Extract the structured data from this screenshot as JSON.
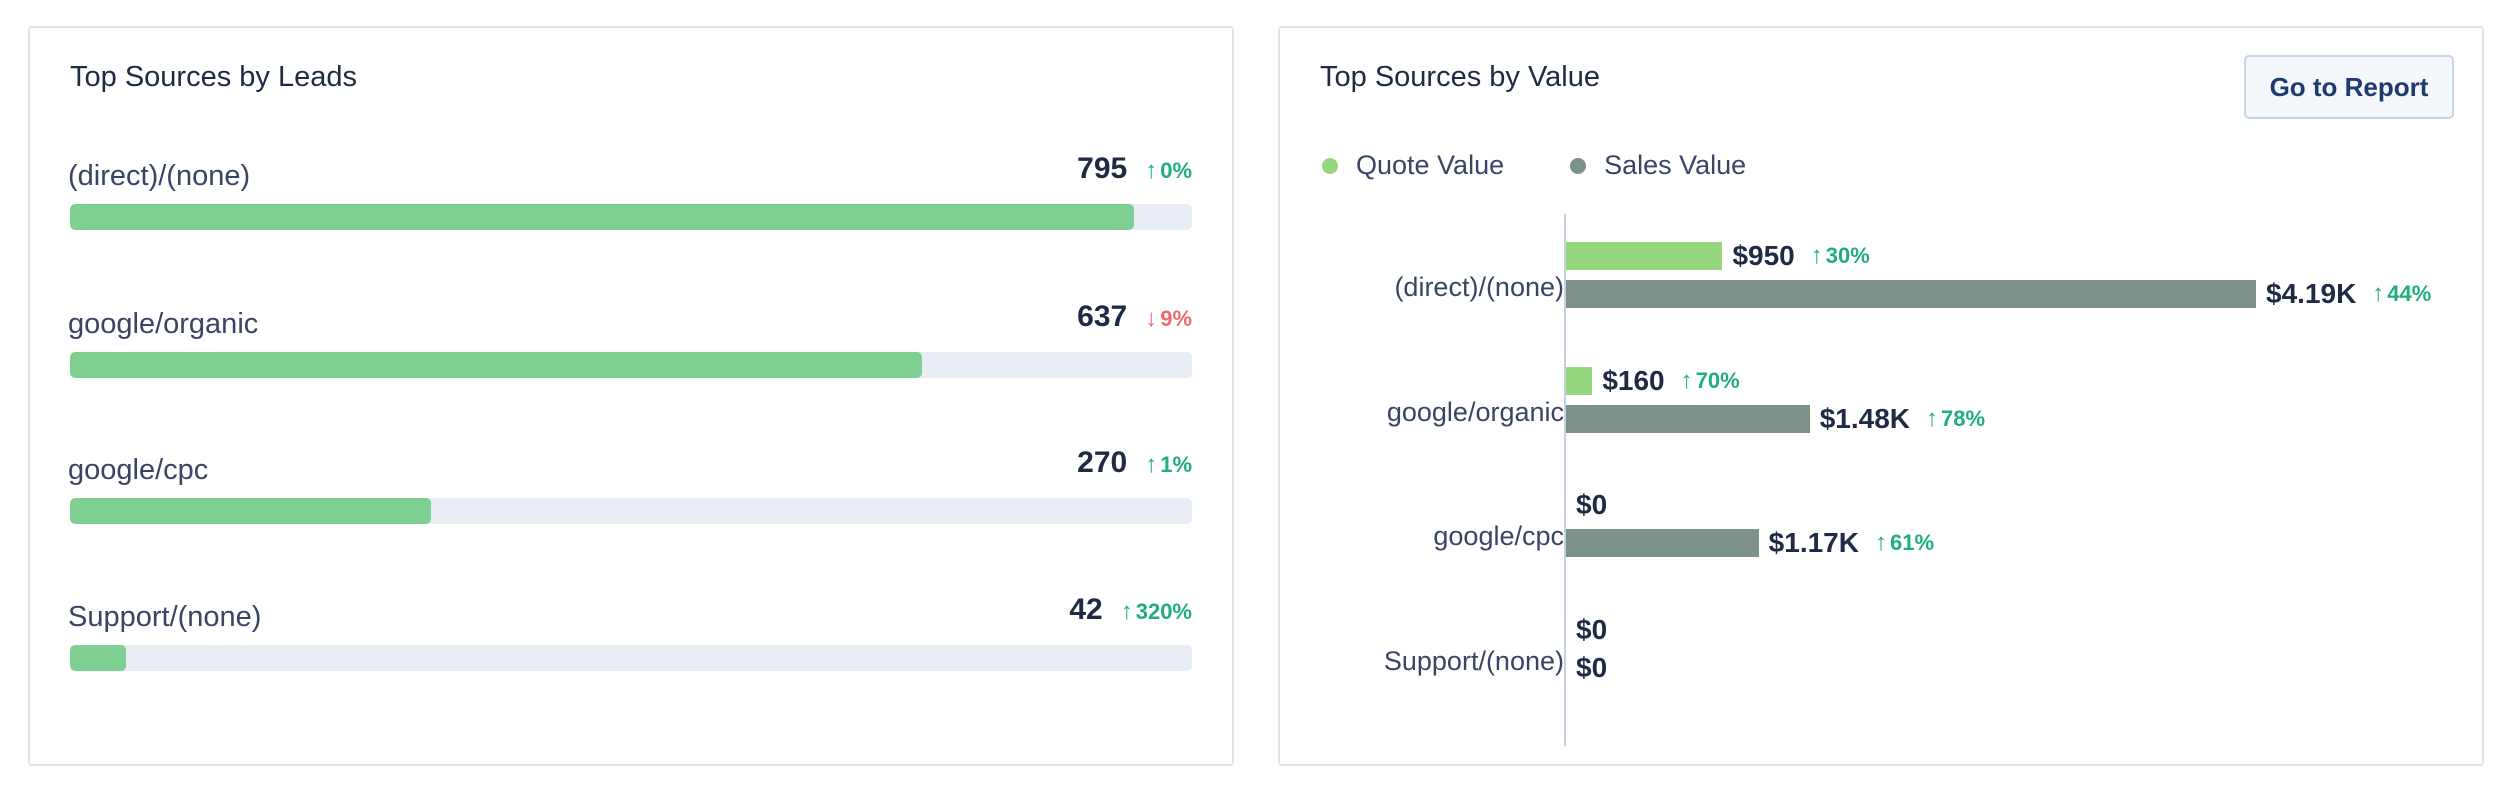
{
  "leads_card": {
    "title": "Top Sources by Leads",
    "max": 795,
    "rows": [
      {
        "label": "(direct)/(none)",
        "value": 795,
        "trend": "0%",
        "direction": "up"
      },
      {
        "label": "google/organic",
        "value": 637,
        "trend": "9%",
        "direction": "down"
      },
      {
        "label": "google/cpc",
        "value": 270,
        "trend": "1%",
        "direction": "up"
      },
      {
        "label": "Support/(none)",
        "value": 42,
        "trend": "320%",
        "direction": "up"
      }
    ]
  },
  "value_card": {
    "title": "Top Sources by Value",
    "go_to_report_label": "Go to Report",
    "legend": [
      {
        "label": "Quote Value",
        "color": "#96d880"
      },
      {
        "label": "Sales Value",
        "color": "#7c9188"
      }
    ],
    "chart_data": {
      "type": "bar",
      "orientation": "horizontal",
      "categories": [
        "(direct)/(none)",
        "google/organic",
        "google/cpc",
        "Support/(none)"
      ],
      "xlim": [
        0,
        4190
      ],
      "series": [
        {
          "name": "Quote Value",
          "values": [
            950,
            160,
            0,
            0
          ],
          "labels": [
            "$950",
            "$160",
            "$0",
            "$0"
          ],
          "trends": [
            "30%",
            "70%",
            "",
            ""
          ]
        },
        {
          "name": "Sales Value",
          "values": [
            4190,
            1480,
            1170,
            0
          ],
          "labels": [
            "$4.19K",
            "$1.48K",
            "$1.17K",
            "$0"
          ],
          "trends": [
            "44%",
            "78%",
            "61%",
            ""
          ]
        }
      ]
    }
  },
  "icons": {
    "up": "arrow-up-icon",
    "down": "arrow-down-icon"
  }
}
